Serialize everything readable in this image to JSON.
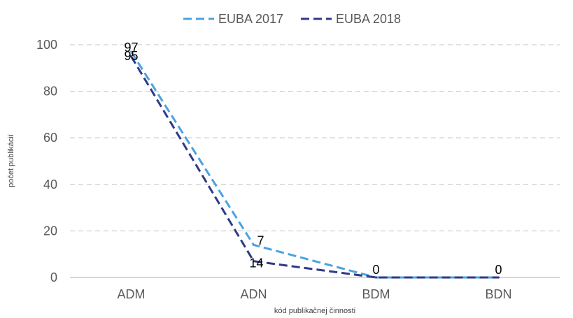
{
  "chart_data": {
    "type": "line",
    "categories": [
      "ADM",
      "ADN",
      "BDM",
      "BDN"
    ],
    "series": [
      {
        "name": "EUBA 2017",
        "values": [
          97,
          14,
          0,
          0
        ],
        "color": "#4aa3df",
        "dash": true
      },
      {
        "name": "EUBA 2018",
        "values": [
          95,
          7,
          0,
          0
        ],
        "color": "#2e3a87",
        "dash": true
      }
    ],
    "data_labels": [
      {
        "category": "ADM",
        "text": "97"
      },
      {
        "category": "ADM",
        "text": "95"
      },
      {
        "category": "ADN",
        "text": "7"
      },
      {
        "category": "ADN",
        "text": "14"
      },
      {
        "category": "BDM",
        "text": "0"
      },
      {
        "category": "BDN",
        "text": "0"
      }
    ],
    "xlabel": "kód publikačnej činnosti",
    "ylabel": "počet publikácií",
    "ylim": [
      0,
      100
    ],
    "yticks": [
      0,
      20,
      40,
      60,
      80,
      100
    ],
    "grid": true,
    "legend_position": "top-center"
  }
}
